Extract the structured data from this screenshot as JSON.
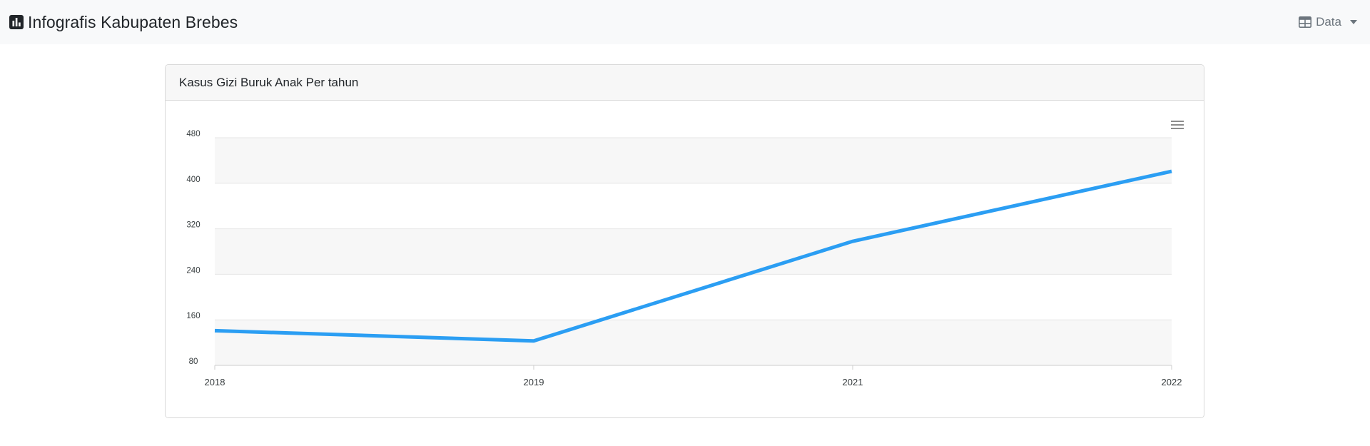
{
  "navbar": {
    "brand_icon": "bar-chart-icon",
    "brand": "Infografis Kabupaten Brebes",
    "dropdown_icon": "table-icon",
    "dropdown_label": "Data"
  },
  "card": {
    "title": "Kasus Gizi Buruk Anak Per tahun",
    "menu_icon": "hamburger-menu-icon"
  },
  "colors": {
    "line": "#2b9ef3",
    "band": "#f7f7f7",
    "grid": "#e6e6e6",
    "navbar_bg": "#f8f9fa"
  },
  "chart_data": {
    "type": "line",
    "title": "",
    "xlabel": "",
    "ylabel": "",
    "x": [
      "2018",
      "2019",
      "2021",
      "2022"
    ],
    "series": [
      {
        "values": [
          141,
          123,
          298,
          421
        ]
      }
    ],
    "ylim": [
      80,
      480
    ],
    "yticks": [
      80,
      160,
      240,
      320,
      400,
      480
    ],
    "grid": true,
    "alternate_bands": true,
    "legend": "none"
  }
}
